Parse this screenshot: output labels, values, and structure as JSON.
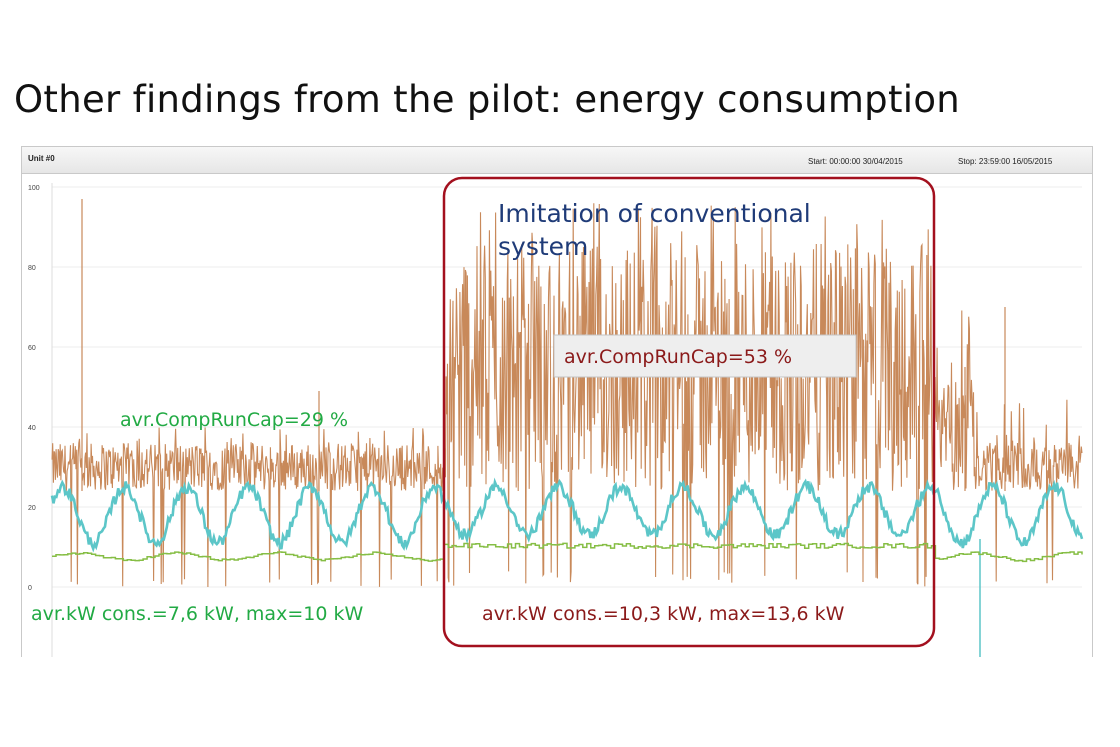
{
  "title": "Other findings from the pilot: energy consumption",
  "panel": {
    "unit": "Unit #0",
    "start": "Start: 00:00:00  30/04/2015",
    "stop": "Stop: 23:59:00  16/05/2015"
  },
  "chart_data": {
    "type": "line",
    "ylim": [
      0,
      100
    ],
    "y_ticks": [
      "0",
      "20",
      "40",
      "60",
      "80",
      "100"
    ],
    "x_range": [
      "30/04/2015 00:00:00",
      "16/05/2015 23:59:00"
    ],
    "grid": true,
    "legend": "none",
    "series": [
      {
        "color": "#c8895a",
        "baseline_avg_percent": 29,
        "pilot_avg_percent": 53,
        "max_percent": 97
      },
      {
        "color": "#5cc6c8",
        "range": [
          8,
          28
        ]
      },
      {
        "color": "#86be45",
        "baseline_avg": 7.6,
        "baseline_max": 10,
        "pilot_avg": 10.3,
        "pilot_max": 13.6
      }
    ],
    "annotations": {
      "imitation_line1": "Imitation of conventional",
      "imitation_line2": "system",
      "pilot_runcap": "avr.CompRunCap=53 %",
      "baseline_runcap": "avr.CompRunCap=29 %",
      "baseline_kw": "avr.kW cons.=7,6 kW, max=10 kW",
      "pilot_kw": "avr.kW cons.=10,3 kW, max=13,6 kW"
    },
    "colors": {
      "highlight_border": "#a3101e",
      "pilot_text": "#8b1a1a",
      "baseline_text": "#22aa44",
      "imitation_text": "#1f3b78"
    }
  }
}
